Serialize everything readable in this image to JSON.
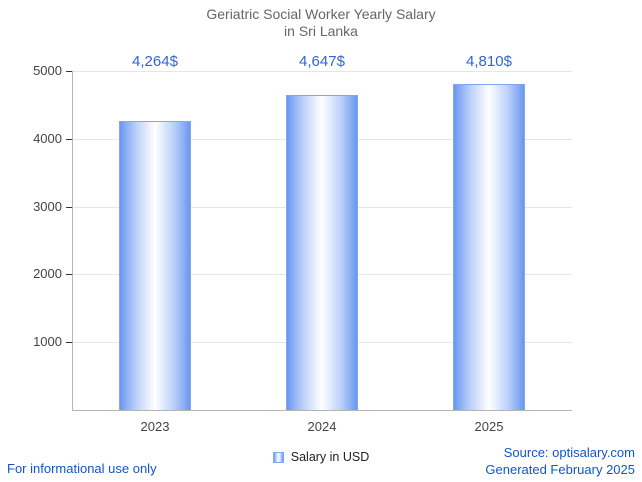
{
  "title": {
    "line1": "Geriatric Social Worker Yearly Salary",
    "line2": "in Sri Lanka"
  },
  "chart_data": {
    "type": "bar",
    "categories": [
      "2023",
      "2024",
      "2025"
    ],
    "values": [
      4264,
      4647,
      4810
    ],
    "value_labels": [
      "4,264$",
      "4,647$",
      "4,810$"
    ],
    "series_name": "Salary in USD",
    "title": "Geriatric Social Worker Yearly Salary in Sri Lanka",
    "xlabel": "",
    "ylabel": "",
    "ylim": [
      0,
      5000
    ],
    "yticks": [
      1000,
      2000,
      3000,
      4000,
      5000
    ],
    "grid": true,
    "legend": {
      "label": "Salary in USD",
      "position": "bottom"
    }
  },
  "footer": {
    "left": "For informational use only",
    "source": "Source: optisalary.com",
    "generated": "Generated February 2025"
  },
  "colors": {
    "bar_edge": "#6b97f0",
    "bar_mid": "#b9cef9",
    "bar_center": "#ffffff",
    "bar_border": "#84a6f0",
    "value_label": "#3366cc",
    "axis_line": "#b6b6b6",
    "gridline": "#e6e6e6",
    "tick": "#333333",
    "axis_text": "#444444",
    "title": "#666666",
    "footer_link": "#1155cc"
  }
}
